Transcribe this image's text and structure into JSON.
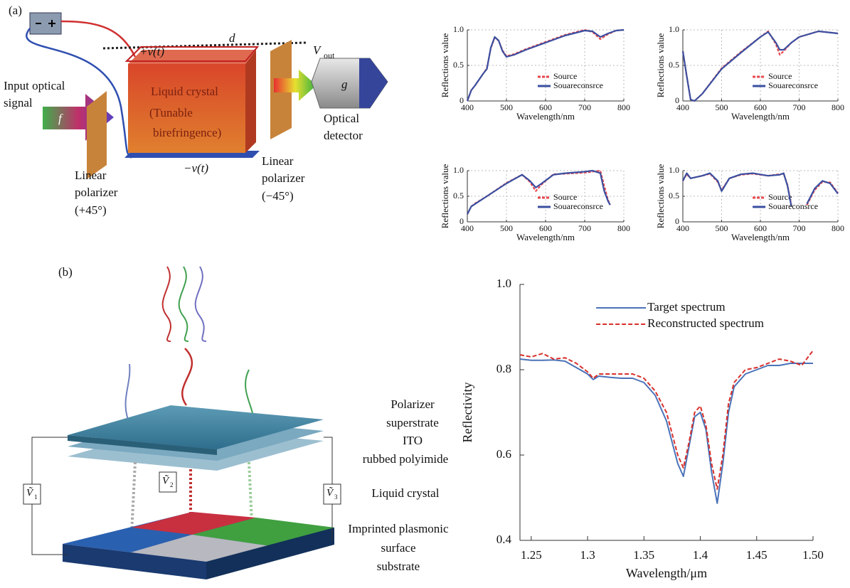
{
  "panel_a": {
    "label": "(a)",
    "plus_v": "+v(t)",
    "minus_v": "−v(t)",
    "d": "d",
    "vout": {
      "symbol": "V",
      "sub": "out"
    },
    "g": "g",
    "f": "f",
    "input_label": [
      "Input optical",
      "signal"
    ],
    "crystal_label": [
      "Liquid crystal",
      "(Tunable",
      "birefringence)"
    ],
    "left_polarizer": [
      "Linear",
      "polarizer",
      "(+45°)"
    ],
    "right_polarizer": [
      "Linear",
      "polarizer",
      "(−45°)"
    ],
    "detector": [
      "Optical",
      "detector"
    ]
  },
  "panel_b": {
    "label": "(b)",
    "voltages": [
      {
        "symbol": "Ṽ",
        "sub": "1"
      },
      {
        "symbol": "Ṽ",
        "sub": "2"
      },
      {
        "symbol": "Ṽ",
        "sub": "3"
      }
    ],
    "layers": [
      "Polarizer",
      "superstrate",
      "ITO",
      "rubbed polyimide"
    ],
    "lc_label": "Liquid crystal",
    "substrate_label": [
      "Imprinted plasmonic",
      "surface",
      "substrate"
    ]
  },
  "chart_data": [
    {
      "type": "line",
      "xlabel": "Wavelength/nm",
      "ylabel": "Reflections value",
      "xlim": [
        400,
        800
      ],
      "ylim": [
        0,
        1
      ],
      "xticks": [
        400,
        500,
        600,
        700,
        800
      ],
      "yticks": [
        0,
        0.5,
        {
          "value": 1,
          "label": "1.0"
        }
      ],
      "grid": true,
      "legend": "lower right",
      "x": [
        400,
        410,
        420,
        430,
        440,
        450,
        460,
        470,
        480,
        490,
        500,
        520,
        550,
        600,
        650,
        700,
        720,
        740,
        760,
        780,
        800
      ],
      "series": [
        {
          "name": "Source",
          "color": "#e8474e",
          "linestyle": "dashed",
          "values": [
            0,
            0.15,
            0.22,
            0.3,
            0.38,
            0.46,
            0.74,
            0.89,
            0.85,
            0.71,
            0.63,
            0.66,
            0.73,
            0.83,
            0.93,
            1.0,
            0.97,
            0.87,
            0.94,
            0.99,
            1.0
          ]
        },
        {
          "name": "Souareconsrce",
          "color": "#3a4fa0",
          "linestyle": "solid",
          "values": [
            0,
            0.15,
            0.22,
            0.3,
            0.38,
            0.45,
            0.75,
            0.9,
            0.85,
            0.7,
            0.62,
            0.65,
            0.72,
            0.82,
            0.92,
            0.99,
            0.98,
            0.9,
            0.95,
            0.99,
            1.0
          ]
        }
      ]
    },
    {
      "type": "line",
      "xlabel": "Wavelength/nm",
      "ylabel": "Reflections value",
      "xlim": [
        400,
        800
      ],
      "ylim": [
        0,
        1
      ],
      "xticks": [
        400,
        500,
        600,
        700,
        800
      ],
      "yticks": [
        0,
        0.5,
        {
          "value": 1,
          "label": "1.0"
        }
      ],
      "grid": true,
      "legend": "lower right",
      "x": [
        400,
        410,
        420,
        430,
        450,
        500,
        550,
        600,
        620,
        640,
        650,
        660,
        680,
        700,
        750,
        800
      ],
      "series": [
        {
          "name": "Source",
          "color": "#e8474e",
          "linestyle": "dashed",
          "values": [
            0.7,
            0.35,
            0.02,
            0.0,
            0.1,
            0.46,
            0.69,
            0.9,
            0.98,
            0.8,
            0.65,
            0.7,
            0.82,
            0.9,
            0.98,
            0.95
          ]
        },
        {
          "name": "Souareconsrce",
          "color": "#3a4fa0",
          "linestyle": "solid",
          "values": [
            0.7,
            0.35,
            0.02,
            0.0,
            0.1,
            0.45,
            0.68,
            0.9,
            0.97,
            0.82,
            0.72,
            0.72,
            0.82,
            0.9,
            0.98,
            0.95
          ]
        }
      ]
    },
    {
      "type": "line",
      "xlabel": "Wavelength/nm",
      "ylabel": "Reflections value",
      "xlim": [
        400,
        800
      ],
      "ylim": [
        0,
        1
      ],
      "xticks": [
        400,
        500,
        600,
        700,
        800
      ],
      "yticks": [
        0,
        0.5,
        {
          "value": 1,
          "label": "1.0"
        }
      ],
      "grid": true,
      "legend": "lower right",
      "x": [
        400,
        410,
        420,
        450,
        500,
        540,
        560,
        575,
        590,
        620,
        650,
        700,
        720,
        740,
        750,
        760,
        765
      ],
      "series": [
        {
          "name": "Source",
          "color": "#e8474e",
          "linestyle": "dashed",
          "values": [
            0.15,
            0.3,
            0.36,
            0.5,
            0.76,
            0.92,
            0.78,
            0.6,
            0.73,
            0.93,
            0.94,
            0.96,
            0.98,
            1.0,
            0.7,
            0.42,
            0.33
          ]
        },
        {
          "name": "Souareconsrce",
          "color": "#3a4fa0",
          "linestyle": "solid",
          "values": [
            0.15,
            0.3,
            0.35,
            0.5,
            0.75,
            0.92,
            0.8,
            0.67,
            0.75,
            0.92,
            0.95,
            0.98,
            1.0,
            0.95,
            0.6,
            0.4,
            0.33
          ]
        }
      ]
    },
    {
      "type": "line",
      "xlabel": "Wavelength/nm",
      "ylabel": "Reflections value",
      "xlim": [
        400,
        800
      ],
      "ylim": [
        0,
        1
      ],
      "xticks": [
        400,
        500,
        600,
        700,
        800
      ],
      "yticks": [
        0,
        0.5,
        {
          "value": 1,
          "label": "1.0"
        }
      ],
      "grid": true,
      "legend": "lower right",
      "x": [
        400,
        410,
        420,
        450,
        470,
        490,
        500,
        520,
        550,
        580,
        620,
        650,
        660,
        670,
        680,
        700,
        720,
        740,
        760,
        780,
        800
      ],
      "series": [
        {
          "name": "Source",
          "color": "#e8474e",
          "linestyle": "dashed",
          "values": [
            0.8,
            0.93,
            0.85,
            0.9,
            0.94,
            0.78,
            0.62,
            0.85,
            0.92,
            0.94,
            0.9,
            0.93,
            0.94,
            0.72,
            0.32,
            null,
            0.33,
            0.62,
            0.78,
            0.77,
            0.56
          ]
        },
        {
          "name": "Souareconsrce",
          "color": "#3a4fa0",
          "linestyle": "solid",
          "values": [
            0.8,
            0.95,
            0.85,
            0.9,
            0.95,
            0.8,
            0.6,
            0.85,
            0.93,
            0.95,
            0.9,
            0.92,
            0.95,
            0.7,
            0.3,
            null,
            0.35,
            0.65,
            0.8,
            0.75,
            0.55
          ]
        }
      ]
    },
    {
      "type": "line",
      "xlabel": "Wavelength/μm",
      "ylabel": "Reflectivity",
      "xlim": [
        1.24,
        1.5
      ],
      "ylim": [
        0.4,
        1
      ],
      "xticks": [
        1.25,
        1.3,
        1.35,
        1.4,
        1.45,
        {
          "value": 1.5,
          "label": "1.50"
        }
      ],
      "yticks": [
        0.4,
        0.6,
        0.8,
        {
          "value": 1,
          "label": "1.0"
        }
      ],
      "grid": false,
      "legend": "upper center",
      "x": [
        1.24,
        1.25,
        1.26,
        1.27,
        1.28,
        1.29,
        1.3,
        1.305,
        1.31,
        1.32,
        1.33,
        1.34,
        1.35,
        1.36,
        1.37,
        1.38,
        1.385,
        1.39,
        1.395,
        1.4,
        1.405,
        1.41,
        1.415,
        1.42,
        1.425,
        1.43,
        1.44,
        1.45,
        1.46,
        1.47,
        1.48,
        1.49,
        1.5
      ],
      "series": [
        {
          "name": "Target spectrum",
          "color": "#4a72b8",
          "linestyle": "solid",
          "values": [
            0.825,
            0.822,
            0.822,
            0.823,
            0.82,
            0.805,
            0.79,
            0.777,
            0.785,
            0.782,
            0.78,
            0.78,
            0.77,
            0.74,
            0.68,
            0.58,
            0.55,
            0.62,
            0.69,
            0.7,
            0.66,
            0.56,
            0.487,
            0.58,
            0.7,
            0.76,
            0.79,
            0.8,
            0.81,
            0.81,
            0.815,
            0.815,
            0.815
          ]
        },
        {
          "name": "Reconstructed spectrum",
          "color": "#d8302a",
          "linestyle": "dashed",
          "values": [
            0.835,
            0.83,
            0.838,
            0.825,
            0.828,
            0.815,
            0.795,
            0.78,
            0.79,
            0.79,
            0.79,
            0.79,
            0.78,
            0.75,
            0.7,
            0.6,
            0.57,
            0.63,
            0.7,
            0.715,
            0.67,
            0.58,
            0.52,
            0.6,
            0.72,
            0.77,
            0.8,
            0.805,
            0.815,
            0.825,
            0.82,
            0.81,
            0.845
          ]
        }
      ]
    }
  ]
}
